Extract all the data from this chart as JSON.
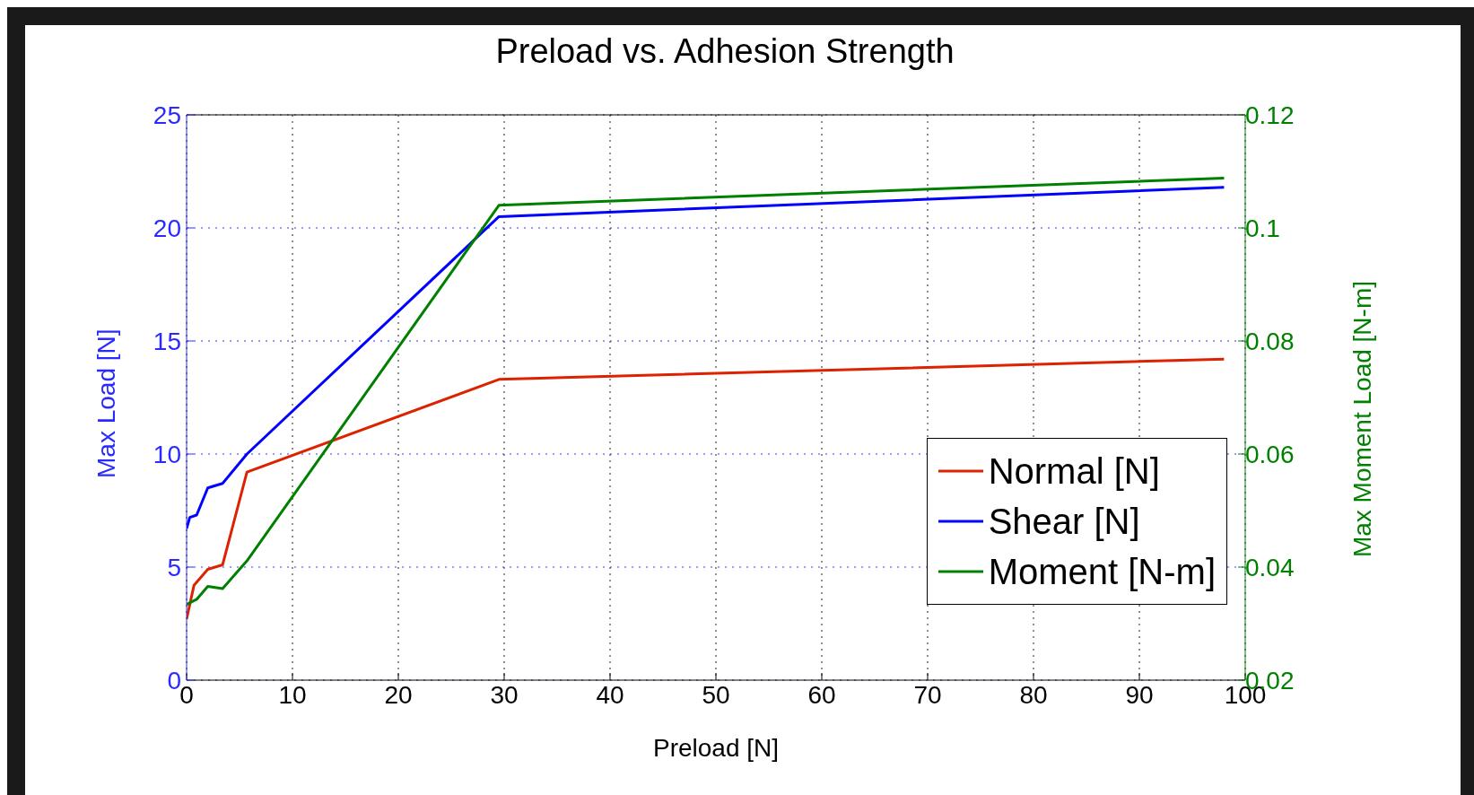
{
  "chart_data": {
    "type": "line",
    "title": "Preload vs. Adhesion Strength",
    "xlabel": "Preload [N]",
    "ylabel": "Max Load [N]",
    "y2label": "Max Moment Load [N-m]",
    "xlim": [
      0,
      100
    ],
    "xticks": [
      0,
      10,
      20,
      30,
      40,
      50,
      60,
      70,
      80,
      90,
      100
    ],
    "ylim": [
      0,
      25
    ],
    "yticks": [
      0,
      5,
      10,
      15,
      20,
      25
    ],
    "y2lim": [
      0.02,
      0.12
    ],
    "y2ticks": [
      0.02,
      0.04,
      0.06,
      0.08,
      0.1,
      0.12
    ],
    "grid": true,
    "legend": "bottom right",
    "line_style": "solid",
    "marker": "none",
    "series": [
      {
        "name": "Normal [N]",
        "color": "#dd2200",
        "x": [
          0,
          0.7,
          2,
          3.4,
          5.7,
          29.5,
          98
        ],
        "values": [
          2.7,
          4.2,
          4.9,
          5.1,
          9.2,
          13.3,
          14.2
        ]
      },
      {
        "name": "Shear [N]",
        "color": "#0000ff",
        "x": [
          0,
          0.3,
          0.95,
          2,
          3.4,
          5.7,
          29.5,
          98
        ],
        "values": [
          6.7,
          7.2,
          7.3,
          8.5,
          8.7,
          10,
          20.5,
          21.8
        ]
      },
      {
        "name": "Moment [N-m]",
        "color": "#008000",
        "axis": "y2",
        "x": [
          0,
          0.95,
          2,
          3.4,
          5.7,
          29.5,
          98
        ],
        "values": [
          0.0334,
          0.0343,
          0.0366,
          0.0362,
          0.0411,
          0.104,
          0.1088
        ]
      }
    ]
  }
}
